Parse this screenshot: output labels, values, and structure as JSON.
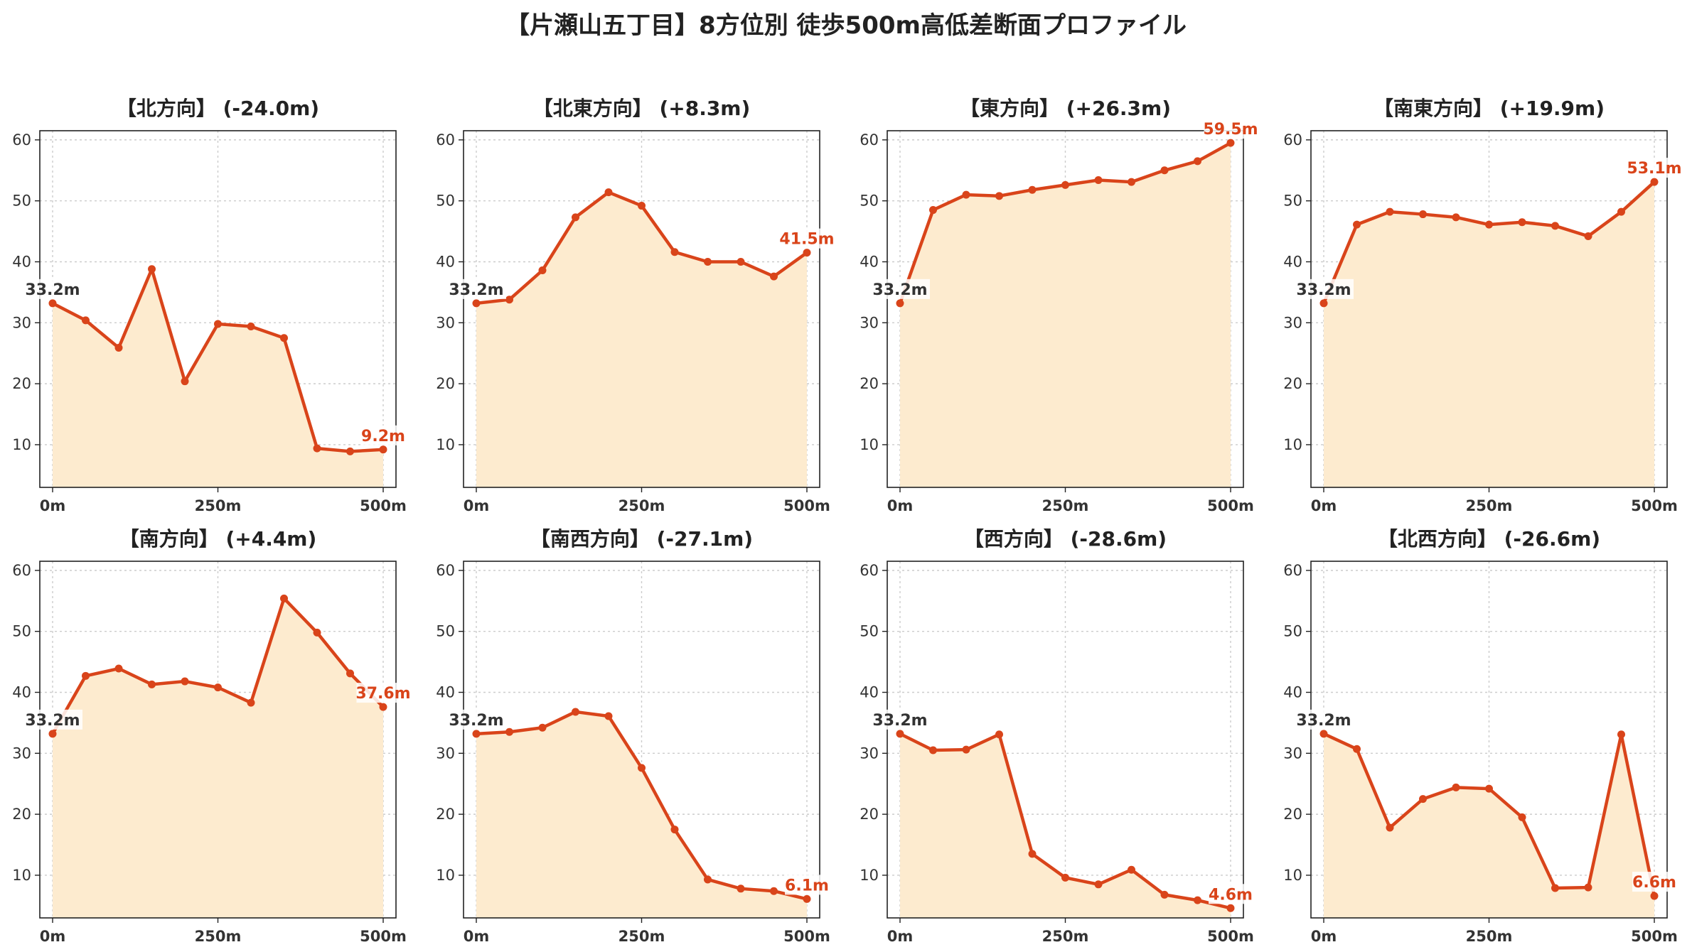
{
  "title": "【片瀬山五丁目】8方位別 徒歩500m高低差断面プロファイル",
  "colors": {
    "line": "#d9441a",
    "fill": "#fdebcf",
    "grid": "#cccccc",
    "start_label": "#333333",
    "end_label": "#d9441a"
  },
  "chart_data": [
    {
      "type": "area",
      "title": "【北方向】 (-24.0m)",
      "x": [
        0,
        50,
        100,
        150,
        200,
        250,
        300,
        350,
        400,
        450,
        500
      ],
      "values": [
        33.2,
        30.4,
        25.9,
        38.8,
        20.4,
        29.8,
        29.4,
        27.5,
        9.4,
        8.9,
        9.2
      ],
      "start_label": "33.2m",
      "end_label": "9.2m",
      "xticks": [
        "0m",
        "250m",
        "500m"
      ],
      "yticks": [
        10,
        20,
        30,
        40,
        50,
        60
      ],
      "ylim": [
        3,
        61.5
      ],
      "grid": true
    },
    {
      "type": "area",
      "title": "【北東方向】 (+8.3m)",
      "x": [
        0,
        50,
        100,
        150,
        200,
        250,
        300,
        350,
        400,
        450,
        500
      ],
      "values": [
        33.2,
        33.8,
        38.6,
        47.3,
        51.4,
        49.2,
        41.6,
        40.0,
        40.0,
        37.6,
        41.5
      ],
      "start_label": "33.2m",
      "end_label": "41.5m",
      "xticks": [
        "0m",
        "250m",
        "500m"
      ],
      "yticks": [
        10,
        20,
        30,
        40,
        50,
        60
      ],
      "ylim": [
        3,
        61.5
      ],
      "grid": true
    },
    {
      "type": "area",
      "title": "【東方向】 (+26.3m)",
      "x": [
        0,
        50,
        100,
        150,
        200,
        250,
        300,
        350,
        400,
        450,
        500
      ],
      "values": [
        33.2,
        48.5,
        51.0,
        50.8,
        51.8,
        52.6,
        53.4,
        53.1,
        55.0,
        56.5,
        59.5
      ],
      "start_label": "33.2m",
      "end_label": "59.5m",
      "xticks": [
        "0m",
        "250m",
        "500m"
      ],
      "yticks": [
        10,
        20,
        30,
        40,
        50,
        60
      ],
      "ylim": [
        3,
        61.5
      ],
      "grid": true
    },
    {
      "type": "area",
      "title": "【南東方向】 (+19.9m)",
      "x": [
        0,
        50,
        100,
        150,
        200,
        250,
        300,
        350,
        400,
        450,
        500
      ],
      "values": [
        33.2,
        46.1,
        48.2,
        47.8,
        47.3,
        46.1,
        46.5,
        45.9,
        44.2,
        48.2,
        53.1
      ],
      "start_label": "33.2m",
      "end_label": "53.1m",
      "xticks": [
        "0m",
        "250m",
        "500m"
      ],
      "yticks": [
        10,
        20,
        30,
        40,
        50,
        60
      ],
      "ylim": [
        3,
        61.5
      ],
      "grid": true
    },
    {
      "type": "area",
      "title": "【南方向】 (+4.4m)",
      "x": [
        0,
        50,
        100,
        150,
        200,
        250,
        300,
        350,
        400,
        450,
        500
      ],
      "values": [
        33.2,
        42.7,
        43.9,
        41.3,
        41.8,
        40.8,
        38.3,
        55.4,
        49.8,
        43.1,
        37.6
      ],
      "start_label": "33.2m",
      "end_label": "37.6m",
      "xticks": [
        "0m",
        "250m",
        "500m"
      ],
      "yticks": [
        10,
        20,
        30,
        40,
        50,
        60
      ],
      "ylim": [
        3,
        61.5
      ],
      "grid": true
    },
    {
      "type": "area",
      "title": "【南西方向】 (-27.1m)",
      "x": [
        0,
        50,
        100,
        150,
        200,
        250,
        300,
        350,
        400,
        450,
        500
      ],
      "values": [
        33.2,
        33.5,
        34.2,
        36.8,
        36.1,
        27.6,
        17.5,
        9.3,
        7.8,
        7.4,
        6.1
      ],
      "start_label": "33.2m",
      "end_label": "6.1m",
      "xticks": [
        "0m",
        "250m",
        "500m"
      ],
      "yticks": [
        10,
        20,
        30,
        40,
        50,
        60
      ],
      "ylim": [
        3,
        61.5
      ],
      "grid": true
    },
    {
      "type": "area",
      "title": "【西方向】 (-28.6m)",
      "x": [
        0,
        50,
        100,
        150,
        200,
        250,
        300,
        350,
        400,
        450,
        500
      ],
      "values": [
        33.2,
        30.5,
        30.6,
        33.1,
        13.5,
        9.6,
        8.5,
        10.9,
        6.8,
        5.9,
        4.6
      ],
      "start_label": "33.2m",
      "end_label": "4.6m",
      "xticks": [
        "0m",
        "250m",
        "500m"
      ],
      "yticks": [
        10,
        20,
        30,
        40,
        50,
        60
      ],
      "ylim": [
        3,
        61.5
      ],
      "grid": true
    },
    {
      "type": "area",
      "title": "【北西方向】 (-26.6m)",
      "x": [
        0,
        50,
        100,
        150,
        200,
        250,
        300,
        350,
        400,
        450,
        500
      ],
      "values": [
        33.2,
        30.7,
        17.8,
        22.5,
        24.4,
        24.2,
        19.5,
        7.9,
        8.0,
        33.1,
        6.6
      ],
      "start_label": "33.2m",
      "end_label": "6.6m",
      "xticks": [
        "0m",
        "250m",
        "500m"
      ],
      "yticks": [
        10,
        20,
        30,
        40,
        50,
        60
      ],
      "ylim": [
        3,
        61.5
      ],
      "grid": true
    }
  ]
}
